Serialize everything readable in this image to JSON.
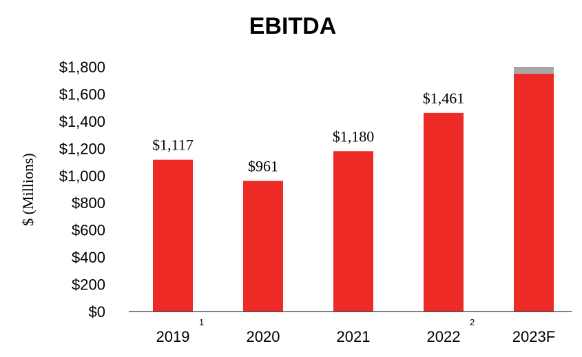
{
  "chart_data": {
    "type": "bar",
    "title": "EBITDA",
    "ylabel": "$ (Millions)",
    "xlabel": "",
    "ylim": [
      0,
      1800
    ],
    "yticks": [
      0,
      200,
      400,
      600,
      800,
      1000,
      1200,
      1400,
      1600,
      1800
    ],
    "ytick_labels": [
      "$0",
      "$200",
      "$400",
      "$600",
      "$800",
      "$1,000",
      "$1,200",
      "$1,400",
      "$1,600",
      "$1,800"
    ],
    "categories": [
      "2019",
      "2020",
      "2021",
      "2022",
      "2023F"
    ],
    "footnotes": [
      "1",
      "",
      "",
      "2",
      ""
    ],
    "series": [
      {
        "values": [
          1117,
          961,
          1180,
          1461,
          1750
        ],
        "color": "#ee2a27"
      },
      {
        "values": [
          0,
          0,
          0,
          0,
          50
        ],
        "color": "#a6a6a6"
      }
    ],
    "data_labels": [
      "$1,117",
      "$961",
      "$1,180",
      "$1,461",
      ""
    ],
    "grid": false
  }
}
